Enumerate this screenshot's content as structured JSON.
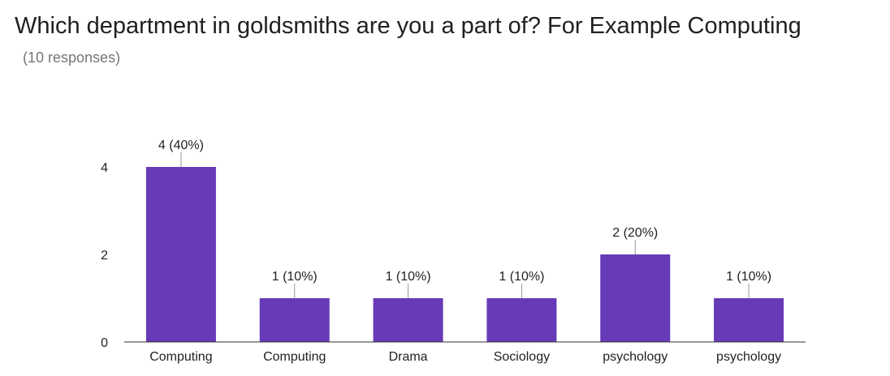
{
  "header": {
    "title": "Which department in goldsmiths are you a part of? For Example Computing",
    "subtitle": "(10 responses)"
  },
  "chart_data": {
    "type": "bar",
    "categories": [
      "Computing",
      "Computing",
      "Drama",
      "Sociology",
      "psychology",
      "psychology"
    ],
    "values": [
      4,
      1,
      1,
      1,
      2,
      1
    ],
    "data_labels": [
      "4 (40%)",
      "1 (10%)",
      "1 (10%)",
      "1 (10%)",
      "2 (20%)",
      "1 (10%)"
    ],
    "yticks": [
      0,
      2,
      4
    ],
    "ylim": [
      0,
      4
    ],
    "grid": false,
    "bar_color": "#673ab7",
    "axis_color": "#333333",
    "leader_color": "#999999"
  }
}
